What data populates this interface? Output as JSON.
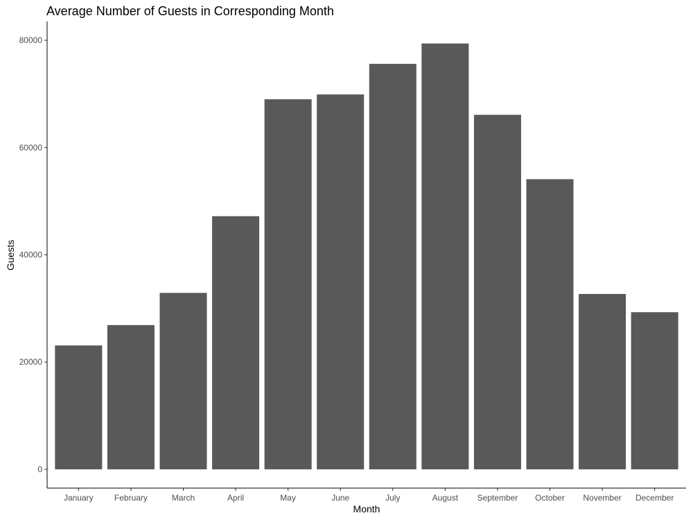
{
  "chart_data": {
    "type": "bar",
    "title": "Average Number of Guests in Corresponding Month",
    "xlabel": "Month",
    "ylabel": "Guests",
    "categories": [
      "January",
      "February",
      "March",
      "April",
      "May",
      "June",
      "July",
      "August",
      "September",
      "October",
      "November",
      "December"
    ],
    "values": [
      23100,
      26900,
      32900,
      47200,
      69000,
      69900,
      75600,
      79400,
      66100,
      54100,
      32700,
      29300
    ],
    "ylim": [
      -3500,
      83500
    ],
    "yticks": [
      0,
      20000,
      40000,
      60000,
      80000
    ],
    "ytick_labels": [
      "0",
      "20000",
      "40000",
      "60000",
      "80000"
    ],
    "grid": false,
    "bar_color": "#595959"
  }
}
